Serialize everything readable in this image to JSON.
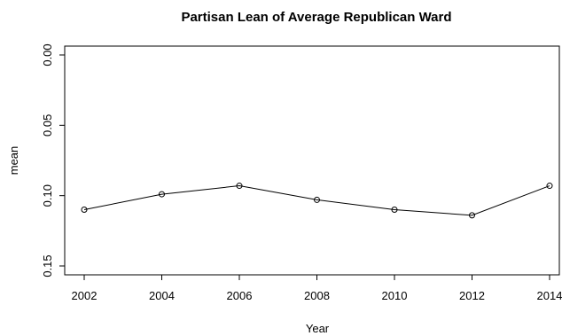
{
  "chart_data": {
    "type": "line",
    "title": "Partisan Lean of Average Republican Ward",
    "xlabel": "Year",
    "ylabel": "mean",
    "x": [
      2002,
      2004,
      2006,
      2008,
      2010,
      2012,
      2014
    ],
    "y": [
      0.11,
      0.099,
      0.093,
      0.103,
      0.11,
      0.114,
      0.093
    ],
    "x_ticks": [
      "2002",
      "2004",
      "2006",
      "2008",
      "2010",
      "2012",
      "2014"
    ],
    "y_ticks": [
      "0.00",
      "0.05",
      "0.10",
      "0.15"
    ],
    "xlim": [
      2002,
      2014
    ],
    "ylim": [
      0.0,
      0.15
    ],
    "y_reversed": true,
    "grid": false,
    "marker": "open-circle"
  }
}
